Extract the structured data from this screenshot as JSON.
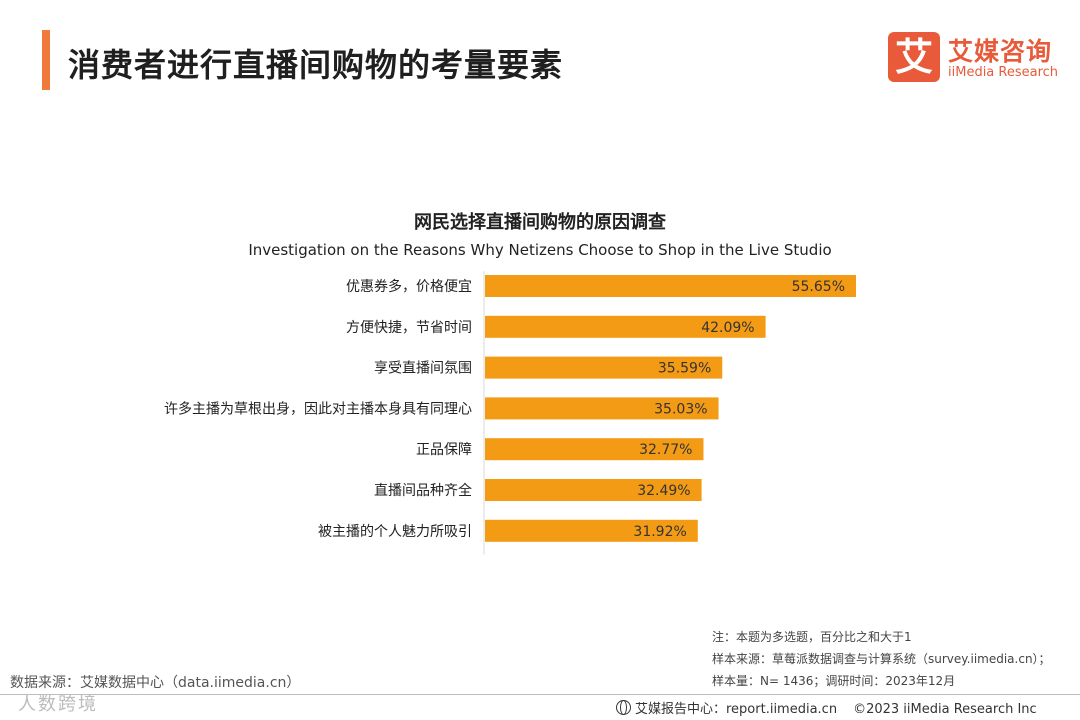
{
  "header": {
    "title": "消费者进行直播间购物的考量要素",
    "logo_cn": "艾媒咨询",
    "logo_en": "iiMedia Research",
    "logo_mark": "艾",
    "accent_color": "#f07a3c"
  },
  "chart_data": {
    "type": "bar",
    "orientation": "horizontal",
    "title": "网民选择直播间购物的原因调查",
    "subtitle": "Investigation on the Reasons Why Netizens Choose to Shop in the Live Studio",
    "categories": [
      "优惠券多，价格便宜",
      "方便快捷，节省时间",
      "享受直播间氛围",
      "许多主播为草根出身，因此对主播本身具有同理心",
      "正品保障",
      "直播间品种齐全",
      "被主播的个人魅力所吸引"
    ],
    "values": [
      55.65,
      42.09,
      35.59,
      35.03,
      32.77,
      32.49,
      31.92
    ],
    "value_labels": [
      "55.65%",
      "42.09%",
      "35.59%",
      "35.03%",
      "32.77%",
      "32.49%",
      "31.92%"
    ],
    "bar_color": "#f49b16",
    "xlim": [
      0,
      60
    ]
  },
  "notes": {
    "line1": "注：本题为多选题，百分比之和大于1",
    "line2": "样本来源：草莓派数据调查与计算系统（survey.iimedia.cn）；",
    "line3": "样本量：N= 1436；调研时间：2023年12月"
  },
  "footer": {
    "source": "数据来源：艾媒数据中心（data.iimedia.cn）",
    "watermark": "人数跨境",
    "report_label": "艾媒报告中心：report.iimedia.cn",
    "copyright": "©2023  iiMedia Research  Inc"
  }
}
